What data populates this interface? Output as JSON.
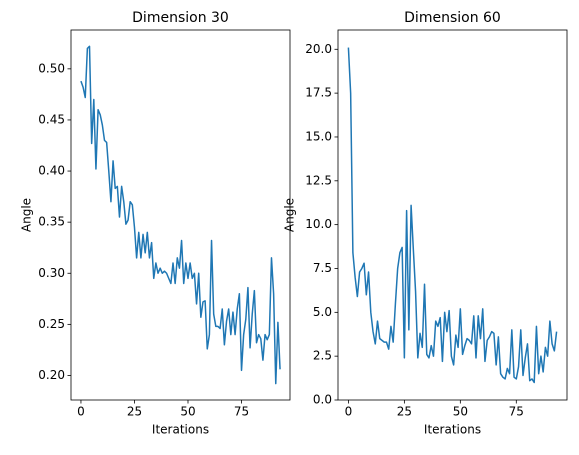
{
  "chart_data": [
    {
      "type": "line",
      "title": "Dimension 30",
      "xlabel": "Iterations",
      "ylabel": "Angle",
      "x": [
        0,
        1,
        2,
        3,
        4,
        5,
        6,
        7,
        8,
        9,
        10,
        11,
        12,
        13,
        14,
        15,
        16,
        17,
        18,
        19,
        20,
        21,
        22,
        23,
        24,
        25,
        26,
        27,
        28,
        29,
        30,
        31,
        32,
        33,
        34,
        35,
        36,
        37,
        38,
        39,
        40,
        41,
        42,
        43,
        44,
        45,
        46,
        47,
        48,
        49,
        50,
        51,
        52,
        53,
        54,
        55,
        56,
        57,
        58,
        59,
        60,
        61,
        62,
        63,
        64,
        65,
        66,
        67,
        68,
        69,
        70,
        71,
        72,
        73,
        74,
        75,
        76,
        77,
        78,
        79,
        80,
        81,
        82,
        83,
        84,
        85,
        86,
        87,
        88,
        89,
        90,
        91,
        92,
        93
      ],
      "series": [
        {
          "name": "Angle",
          "color": "#1f77b4",
          "values": [
            0.488,
            0.482,
            0.472,
            0.52,
            0.522,
            0.427,
            0.47,
            0.402,
            0.46,
            0.455,
            0.445,
            0.43,
            0.428,
            0.4,
            0.37,
            0.41,
            0.383,
            0.385,
            0.355,
            0.385,
            0.37,
            0.348,
            0.352,
            0.37,
            0.367,
            0.345,
            0.315,
            0.34,
            0.315,
            0.338,
            0.32,
            0.34,
            0.315,
            0.33,
            0.295,
            0.31,
            0.3,
            0.305,
            0.3,
            0.302,
            0.3,
            0.295,
            0.29,
            0.31,
            0.29,
            0.315,
            0.305,
            0.332,
            0.29,
            0.31,
            0.295,
            0.31,
            0.295,
            0.3,
            0.27,
            0.3,
            0.257,
            0.272,
            0.273,
            0.226,
            0.24,
            0.332,
            0.26,
            0.248,
            0.248,
            0.246,
            0.265,
            0.23,
            0.253,
            0.265,
            0.24,
            0.262,
            0.24,
            0.265,
            0.28,
            0.205,
            0.24,
            0.255,
            0.286,
            0.227,
            0.26,
            0.283,
            0.232,
            0.24,
            0.236,
            0.215,
            0.24,
            0.235,
            0.24,
            0.315,
            0.28,
            0.192,
            0.252,
            0.206
          ]
        }
      ],
      "xlim": [
        -4.65,
        97.65
      ],
      "xticks": [
        0,
        25,
        50,
        75
      ],
      "ylim": [
        0.176,
        0.538
      ],
      "yticks": [
        {
          "value": 0.2,
          "label": "0.20"
        },
        {
          "value": 0.25,
          "label": "0.25"
        },
        {
          "value": 0.3,
          "label": "0.30"
        },
        {
          "value": 0.35,
          "label": "0.35"
        },
        {
          "value": 0.4,
          "label": "0.40"
        },
        {
          "value": 0.45,
          "label": "0.45"
        },
        {
          "value": 0.5,
          "label": "0.50"
        }
      ]
    },
    {
      "type": "line",
      "title": "Dimension 60",
      "xlabel": "Iterations",
      "ylabel": "Angle",
      "x": [
        0,
        1,
        2,
        3,
        4,
        5,
        6,
        7,
        8,
        9,
        10,
        11,
        12,
        13,
        14,
        15,
        16,
        17,
        18,
        19,
        20,
        21,
        22,
        23,
        24,
        25,
        26,
        27,
        28,
        29,
        30,
        31,
        32,
        33,
        34,
        35,
        36,
        37,
        38,
        39,
        40,
        41,
        42,
        43,
        44,
        45,
        46,
        47,
        48,
        49,
        50,
        51,
        52,
        53,
        54,
        55,
        56,
        57,
        58,
        59,
        60,
        61,
        62,
        63,
        64,
        65,
        66,
        67,
        68,
        69,
        70,
        71,
        72,
        73,
        74,
        75,
        76,
        77,
        78,
        79,
        80,
        81,
        82,
        83,
        84,
        85,
        86,
        87,
        88,
        89,
        90,
        91,
        92,
        93
      ],
      "series": [
        {
          "name": "Angle",
          "color": "#1f77b4",
          "values": [
            20.1,
            17.5,
            8.4,
            7.0,
            5.9,
            7.3,
            7.5,
            7.8,
            6.0,
            7.3,
            5.0,
            3.9,
            3.2,
            4.5,
            3.5,
            3.4,
            3.3,
            3.3,
            2.9,
            4.2,
            3.3,
            5.5,
            7.5,
            8.4,
            8.7,
            2.4,
            10.8,
            4.0,
            11.1,
            8.6,
            6.2,
            2.4,
            3.8,
            3.0,
            6.6,
            2.6,
            2.4,
            3.1,
            2.5,
            4.5,
            4.2,
            4.7,
            2.2,
            5.0,
            3.9,
            5.1,
            2.5,
            2.0,
            3.7,
            3.0,
            5.2,
            2.6,
            3.1,
            3.5,
            3.4,
            3.2,
            4.8,
            2.4,
            4.8,
            3.5,
            5.2,
            2.2,
            3.4,
            3.6,
            3.9,
            3.8,
            2.0,
            3.6,
            1.5,
            1.3,
            1.2,
            1.8,
            1.5,
            4.0,
            1.3,
            1.2,
            1.9,
            4.0,
            1.4,
            2.4,
            3.2,
            1.1,
            1.2,
            1.0,
            4.2,
            1.5,
            2.5,
            1.6,
            3.0,
            2.5,
            4.5,
            3.2,
            2.8,
            3.9
          ]
        }
      ],
      "xlim": [
        -4.65,
        97.65
      ],
      "xticks": [
        0,
        25,
        50,
        75
      ],
      "ylim": [
        0.0,
        21.1
      ],
      "yticks": [
        {
          "value": 0,
          "label": "0.0"
        },
        {
          "value": 2.5,
          "label": "2.5"
        },
        {
          "value": 5,
          "label": "5.0"
        },
        {
          "value": 7.5,
          "label": "7.5"
        },
        {
          "value": 10,
          "label": "10.0"
        },
        {
          "value": 12.5,
          "label": "12.5"
        },
        {
          "value": 15,
          "label": "15.0"
        },
        {
          "value": 17.5,
          "label": "17.5"
        },
        {
          "value": 20,
          "label": "20.0"
        }
      ]
    }
  ]
}
